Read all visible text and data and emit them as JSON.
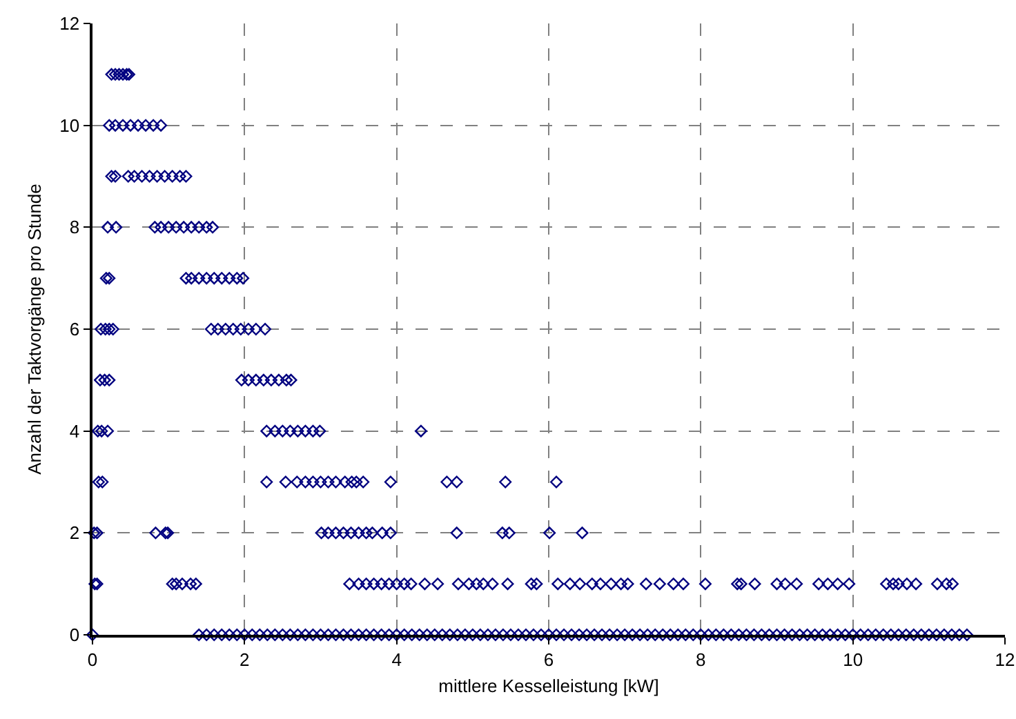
{
  "chart_data": {
    "type": "scatter",
    "xlabel": "mittlere Kesselleistung [kW]",
    "ylabel": "Anzahl der Taktvorgänge pro Stunde",
    "xlim": [
      0,
      12
    ],
    "ylim": [
      0,
      12
    ],
    "xticks": [
      0,
      2,
      4,
      6,
      8,
      10,
      12
    ],
    "yticks": [
      0,
      2,
      4,
      6,
      8,
      10,
      12
    ],
    "grid": true,
    "legend": false,
    "marker": "diamond",
    "series": [
      {
        "color": "#000080",
        "x": [
          0.25,
          0.3,
          0.35,
          0.4,
          0.45,
          0.48
        ],
        "values": [
          11,
          11,
          11,
          11,
          11,
          11
        ]
      },
      {
        "color": "#000080",
        "x": [
          0.22,
          0.3,
          0.4,
          0.5,
          0.6,
          0.7,
          0.8,
          0.9
        ],
        "values": [
          10,
          10,
          10,
          10,
          10,
          10,
          10,
          10
        ]
      },
      {
        "color": "#000080",
        "x": [
          0.25,
          0.3,
          0.47,
          0.55,
          0.65,
          0.75,
          0.85,
          0.95,
          1.05,
          1.15,
          1.23
        ],
        "values": [
          9,
          9,
          9,
          9,
          9,
          9,
          9,
          9,
          9,
          9,
          9
        ]
      },
      {
        "color": "#000080",
        "x": [
          0.2,
          0.31,
          0.82,
          0.9,
          1.0,
          1.1,
          1.2,
          1.3,
          1.4,
          1.5,
          1.58
        ],
        "values": [
          8,
          8,
          8,
          8,
          8,
          8,
          8,
          8,
          8,
          8,
          8
        ]
      },
      {
        "color": "#000080",
        "x": [
          0.18,
          0.22,
          1.23,
          1.3,
          1.4,
          1.5,
          1.6,
          1.7,
          1.8,
          1.9,
          1.98
        ],
        "values": [
          7,
          7,
          7,
          7,
          7,
          7,
          7,
          7,
          7,
          7,
          7
        ]
      },
      {
        "color": "#000080",
        "x": [
          0.11,
          0.17,
          0.22,
          0.27,
          1.56,
          1.65,
          1.75,
          1.85,
          1.95,
          2.05,
          2.15,
          2.27
        ],
        "values": [
          6,
          6,
          6,
          6,
          6,
          6,
          6,
          6,
          6,
          6,
          6,
          6
        ]
      },
      {
        "color": "#000080",
        "x": [
          0.1,
          0.16,
          0.22,
          1.96,
          2.05,
          2.15,
          2.25,
          2.35,
          2.45,
          2.55,
          2.61
        ],
        "values": [
          5,
          5,
          5,
          5,
          5,
          5,
          5,
          5,
          5,
          5,
          5
        ]
      },
      {
        "color": "#000080",
        "x": [
          0.07,
          0.12,
          0.2,
          2.29,
          2.4,
          2.5,
          2.6,
          2.7,
          2.8,
          2.9,
          2.99,
          4.32
        ],
        "values": [
          4,
          4,
          4,
          4,
          4,
          4,
          4,
          4,
          4,
          4,
          4,
          4
        ]
      },
      {
        "color": "#000080",
        "x": [
          0.08,
          0.13,
          2.29,
          2.54,
          2.69,
          2.8,
          2.9,
          3.0,
          3.1,
          3.2,
          3.32,
          3.41,
          3.47,
          3.56,
          3.92,
          4.66,
          4.79,
          5.43,
          6.1
        ],
        "values": [
          3,
          3,
          3,
          3,
          3,
          3,
          3,
          3,
          3,
          3,
          3,
          3,
          3,
          3,
          3,
          3,
          3,
          3,
          3
        ]
      },
      {
        "color": "#000080",
        "x": [
          0.02,
          0.06,
          0.83,
          0.96,
          0.99,
          3.01,
          3.1,
          3.2,
          3.3,
          3.4,
          3.5,
          3.6,
          3.68,
          3.81,
          3.92,
          4.79,
          5.39,
          5.48,
          6.01,
          6.44
        ],
        "values": [
          2,
          2,
          2,
          2,
          2,
          2,
          2,
          2,
          2,
          2,
          2,
          2,
          2,
          2,
          2,
          2,
          2,
          2,
          2,
          2
        ]
      },
      {
        "color": "#000080",
        "x": [
          0.03,
          0.06,
          1.05,
          1.1,
          1.18,
          1.29,
          1.36,
          3.38,
          3.5,
          3.6,
          3.7,
          3.8,
          3.9,
          4.0,
          4.1,
          4.19,
          4.37,
          4.54,
          4.81,
          4.95,
          5.05,
          5.14,
          5.26,
          5.46,
          5.77,
          5.84,
          6.12,
          6.28,
          6.41,
          6.57,
          6.68,
          6.82,
          6.95,
          7.04,
          7.28,
          7.46,
          7.64,
          7.77,
          8.06,
          8.48,
          8.53,
          8.71,
          9.0,
          9.11,
          9.26,
          9.55,
          9.67,
          9.8,
          9.95,
          10.44,
          10.53,
          10.6,
          10.71,
          10.83,
          11.11,
          11.23,
          11.31
        ],
        "values": [
          1,
          1,
          1,
          1,
          1,
          1,
          1,
          1,
          1,
          1,
          1,
          1,
          1,
          1,
          1,
          1,
          1,
          1,
          1,
          1,
          1,
          1,
          1,
          1,
          1,
          1,
          1,
          1,
          1,
          1,
          1,
          1,
          1,
          1,
          1,
          1,
          1,
          1,
          1,
          1,
          1,
          1,
          1,
          1,
          1,
          1,
          1,
          1,
          1,
          1,
          1,
          1,
          1,
          1,
          1,
          1,
          1
        ]
      },
      {
        "color": "#000080",
        "x": [
          0,
          1.4,
          1.5,
          1.6,
          1.7,
          1.8,
          1.9,
          2.0,
          2.1,
          2.2,
          2.3,
          2.4,
          2.5,
          2.6,
          2.7,
          2.8,
          2.9,
          3.0,
          3.1,
          3.2,
          3.3,
          3.4,
          3.5,
          3.6,
          3.7,
          3.8,
          3.9,
          4.0,
          4.1,
          4.2,
          4.3,
          4.4,
          4.5,
          4.6,
          4.7,
          4.8,
          4.9,
          5.0,
          5.1,
          5.2,
          5.3,
          5.4,
          5.5,
          5.6,
          5.7,
          5.8,
          5.9,
          6.0,
          6.1,
          6.2,
          6.3,
          6.4,
          6.5,
          6.6,
          6.7,
          6.8,
          6.9,
          7.0,
          7.1,
          7.2,
          7.3,
          7.4,
          7.5,
          7.6,
          7.7,
          7.8,
          7.9,
          8.0,
          8.1,
          8.2,
          8.3,
          8.4,
          8.5,
          8.6,
          8.7,
          8.8,
          8.9,
          9.0,
          9.1,
          9.2,
          9.3,
          9.4,
          9.5,
          9.6,
          9.7,
          9.8,
          9.9,
          10.0,
          10.1,
          10.2,
          10.3,
          10.4,
          10.5,
          10.6,
          10.7,
          10.8,
          10.9,
          11.0,
          11.1,
          11.2,
          11.3,
          11.4,
          11.5
        ],
        "values": [
          0,
          0,
          0,
          0,
          0,
          0,
          0,
          0,
          0,
          0,
          0,
          0,
          0,
          0,
          0,
          0,
          0,
          0,
          0,
          0,
          0,
          0,
          0,
          0,
          0,
          0,
          0,
          0,
          0,
          0,
          0,
          0,
          0,
          0,
          0,
          0,
          0,
          0,
          0,
          0,
          0,
          0,
          0,
          0,
          0,
          0,
          0,
          0,
          0,
          0,
          0,
          0,
          0,
          0,
          0,
          0,
          0,
          0,
          0,
          0,
          0,
          0,
          0,
          0,
          0,
          0,
          0,
          0,
          0,
          0,
          0,
          0,
          0,
          0,
          0,
          0,
          0,
          0,
          0,
          0,
          0,
          0,
          0,
          0,
          0,
          0,
          0,
          0,
          0,
          0,
          0,
          0,
          0,
          0,
          0,
          0,
          0,
          0,
          0,
          0,
          0,
          0,
          0
        ]
      }
    ]
  }
}
